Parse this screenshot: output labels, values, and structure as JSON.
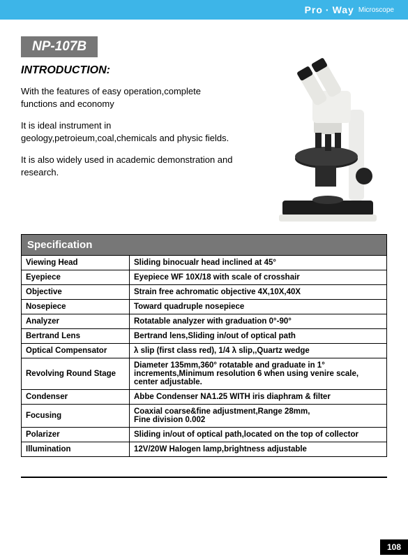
{
  "header": {
    "brand_pro": "Pro",
    "brand_dot": "·",
    "brand_way": "Way",
    "brand_sub": "Microscope",
    "bar_color": "#3db5e8"
  },
  "model_badge": "NP-107B",
  "intro": {
    "heading": "INTRODUCTION:",
    "p1": "With the features of easy operation,complete functions and economy",
    "p2": "It is ideal instrument in geology,petroieum,coal,chemicals and physic fields.",
    "p3": "It is also widely used in academic demonstration and research."
  },
  "image": {
    "alt": "Binocular polarizing microscope",
    "body_color": "#f2f2ee",
    "accent_color": "#222222"
  },
  "spec": {
    "title": "Specification",
    "rows": [
      {
        "k": "Viewing Head",
        "v": "Sliding binocualr head inclined at 45°"
      },
      {
        "k": "Eyepiece",
        "v": "Eyepiece WF 10X/18 with scale of crosshair"
      },
      {
        "k": "Objective",
        "v": "Strain free achromatic objective 4X,10X,40X"
      },
      {
        "k": "Nosepiece",
        "v": "Toward quadruple nosepiece"
      },
      {
        "k": "Analyzer",
        "v": "Rotatable analyzer with graduation 0°-90°"
      },
      {
        "k": "Bertrand Lens",
        "v": "Bertrand lens,Sliding in/out of optical path"
      },
      {
        "k": "Optical Compensator",
        "v": "λ slip (first class red),  1/4 λ slip,,Quartz wedge"
      },
      {
        "k": "Revolving Round Stage",
        "v": "Diameter 135mm,360° rotatable and graduate in 1° increments,Minimum resolution 6 when using venire scale, center adjustable."
      },
      {
        "k": "Condenser",
        "v": "Abbe Condenser NA1.25 WITH iris diaphram & filter"
      },
      {
        "k": "Focusing",
        "v": "Coaxial coarse&fine adjustment,Range 28mm,\nFine division 0.002"
      },
      {
        "k": "Polarizer",
        "v": "Sliding in/out of optical path,located on the top of collector"
      },
      {
        "k": "Illumination",
        "v": "12V/20W Halogen lamp,brightness adjustable"
      }
    ]
  },
  "page_number": "108"
}
